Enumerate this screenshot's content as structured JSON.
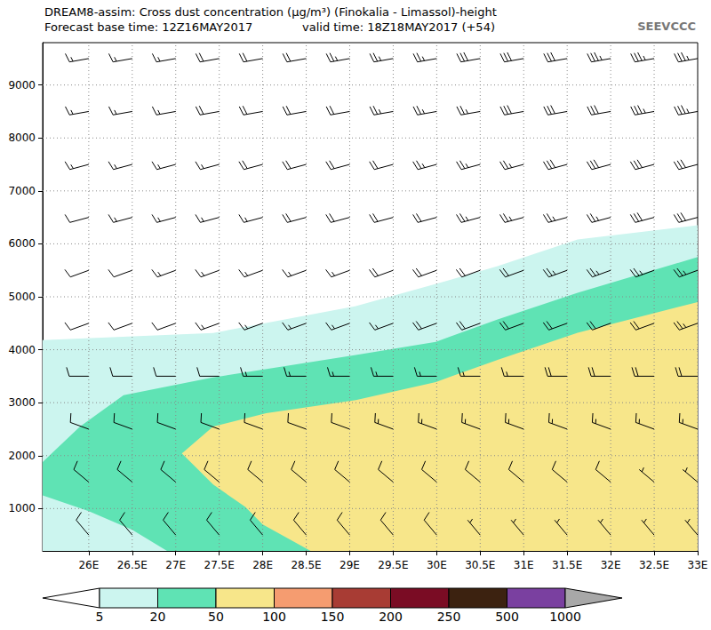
{
  "chart_data": {
    "type": "cross_section",
    "title": "DREAM8-assim: Cross dust concentration (μg/m³) (Finokalia - Limassol)-height",
    "subtitle": "Forecast base time: 12Z16MAY2017",
    "valid_time": "valid time: 18Z18MAY2017 (+54)",
    "logo": "SEEVCCC",
    "xlim": [
      25.47,
      33
    ],
    "ylim": [
      200,
      9800
    ],
    "xticks": [
      {
        "value": 26,
        "label": "26E"
      },
      {
        "value": 26.5,
        "label": "26.5E"
      },
      {
        "value": 27,
        "label": "27E"
      },
      {
        "value": 27.5,
        "label": "27.5E"
      },
      {
        "value": 28,
        "label": "28E"
      },
      {
        "value": 28.5,
        "label": "28.5E"
      },
      {
        "value": 29,
        "label": "29E"
      },
      {
        "value": 29.5,
        "label": "29.5E"
      },
      {
        "value": 30,
        "label": "30E"
      },
      {
        "value": 30.5,
        "label": "30.5E"
      },
      {
        "value": 31,
        "label": "31E"
      },
      {
        "value": 31.5,
        "label": "31.5E"
      },
      {
        "value": 32,
        "label": "32E"
      },
      {
        "value": 32.5,
        "label": "32.5E"
      },
      {
        "value": 33,
        "label": "33E"
      }
    ],
    "yticks": [
      1000,
      2000,
      3000,
      4000,
      5000,
      6000,
      7000,
      8000,
      9000
    ],
    "grid": true,
    "colorbar": {
      "levels": [
        5,
        20,
        50,
        100,
        150,
        200,
        250,
        500,
        1000
      ],
      "colors": [
        "#ffffff",
        "#ccf5ef",
        "#5fe3b4",
        "#f7e68a",
        "#f59c70",
        "#a83c34",
        "#7a0c24",
        "#3c2210",
        "#7a40a0",
        "#a8a8a8"
      ]
    },
    "contours": [
      {
        "level": 5,
        "polygon": [
          [
            25.47,
            200
          ],
          [
            25.47,
            4180
          ],
          [
            27.43,
            4317
          ],
          [
            29.07,
            4822
          ],
          [
            29.99,
            5242
          ],
          [
            30.7,
            5579
          ],
          [
            31.62,
            6084
          ],
          [
            33,
            6350
          ],
          [
            33,
            200
          ]
        ]
      },
      {
        "level": 20,
        "polygon": [
          [
            25.47,
            1250
          ],
          [
            25.47,
            1880
          ],
          [
            25.9,
            2550
          ],
          [
            26.4,
            3140
          ],
          [
            27.4,
            3470
          ],
          [
            29.07,
            3900
          ],
          [
            29.99,
            4150
          ],
          [
            30.7,
            4570
          ],
          [
            31.62,
            5075
          ],
          [
            33,
            5750
          ],
          [
            33,
            200
          ],
          [
            26.9,
            200
          ],
          [
            26.5,
            600
          ],
          [
            26,
            950
          ]
        ]
      },
      {
        "level": 50,
        "polygon": [
          [
            28.55,
            200
          ],
          [
            28.0,
            700
          ],
          [
            27.8,
            1030
          ],
          [
            27.43,
            1455
          ],
          [
            27.07,
            2040
          ],
          [
            27.43,
            2550
          ],
          [
            28.04,
            2800
          ],
          [
            29.07,
            3050
          ],
          [
            29.99,
            3390
          ],
          [
            30.7,
            3810
          ],
          [
            31.62,
            4320
          ],
          [
            33,
            4900
          ],
          [
            33,
            200
          ]
        ]
      }
    ],
    "wind": {
      "lons": [
        26,
        26.5,
        27,
        27.5,
        28,
        28.5,
        29,
        29.5,
        30,
        30.5,
        31,
        31.5,
        32,
        32.5,
        33
      ],
      "heights": [
        9500,
        8500,
        7500,
        6500,
        5500,
        4500,
        3500,
        2500,
        1500,
        500
      ],
      "direction": [
        260,
        260,
        255,
        255,
        250,
        250,
        270,
        290,
        310,
        320
      ],
      "speed": [
        [
          15,
          15,
          15,
          20,
          20,
          20,
          25,
          25,
          25,
          30,
          30,
          30,
          35,
          35,
          35
        ],
        [
          15,
          15,
          15,
          20,
          20,
          20,
          20,
          25,
          25,
          25,
          30,
          30,
          30,
          35,
          35
        ],
        [
          15,
          15,
          15,
          15,
          20,
          20,
          20,
          20,
          25,
          25,
          25,
          30,
          30,
          30,
          30
        ],
        [
          10,
          15,
          15,
          15,
          15,
          20,
          20,
          20,
          20,
          25,
          25,
          25,
          25,
          30,
          30
        ],
        [
          10,
          10,
          15,
          15,
          15,
          15,
          15,
          20,
          20,
          20,
          20,
          25,
          25,
          25,
          25
        ],
        [
          10,
          10,
          10,
          15,
          15,
          15,
          15,
          15,
          20,
          20,
          20,
          20,
          20,
          20,
          25
        ],
        [
          10,
          10,
          10,
          10,
          15,
          15,
          15,
          15,
          15,
          15,
          15,
          20,
          20,
          20,
          20
        ],
        [
          10,
          10,
          10,
          10,
          10,
          10,
          10,
          15,
          15,
          15,
          15,
          15,
          15,
          15,
          15
        ],
        [
          10,
          10,
          10,
          10,
          10,
          10,
          10,
          10,
          10,
          10,
          10,
          10,
          10,
          5,
          5
        ],
        [
          10,
          10,
          10,
          10,
          10,
          10,
          10,
          10,
          10,
          5,
          5,
          5,
          5,
          5,
          5
        ]
      ]
    }
  }
}
